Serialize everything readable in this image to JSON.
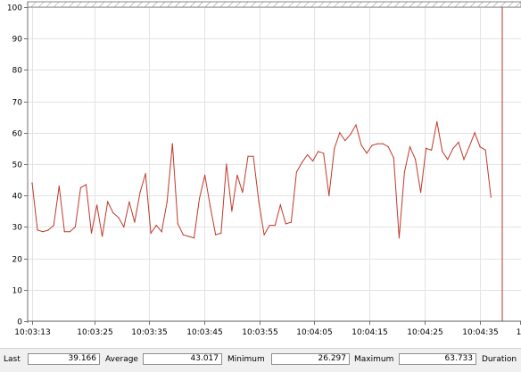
{
  "chart_data": {
    "type": "line",
    "yticks": [
      "0",
      "10",
      "20",
      "30",
      "40",
      "50",
      "60",
      "70",
      "80",
      "90",
      "100"
    ],
    "ylim": [
      0,
      100
    ],
    "xticks": [
      "10:03:13",
      "10:03:25",
      "10:03:35",
      "10:03:45",
      "10:03:55",
      "10:04:05",
      "10:04:15",
      "10:04:25",
      "10:04:35",
      "1"
    ],
    "x_start": "10:03:13",
    "x_end": "10:04:39",
    "grid": true,
    "line_color": "#c0392b",
    "series": [
      {
        "values": [
          44,
          29,
          28.5,
          29,
          30.5,
          43,
          28.5,
          28.5,
          30,
          42.5,
          43.5,
          28,
          37,
          27,
          38,
          34.5,
          33,
          30,
          38,
          31.5,
          41,
          47,
          28,
          30.5,
          28.5,
          38,
          56.5,
          31,
          27.5,
          27,
          26.5,
          39,
          46.5,
          36.5,
          27.5,
          28,
          50,
          35,
          46.5,
          41,
          52.5,
          52.5,
          38,
          27.5,
          30.5,
          30.5,
          37,
          31,
          31.5,
          47.5,
          50.5,
          53,
          51,
          54,
          53.5,
          40,
          55,
          60,
          57.5,
          59.5,
          62.5,
          56,
          53.5,
          56,
          56.5,
          56.5,
          55.5,
          52,
          26.5,
          47.5,
          55.5,
          51.5,
          41,
          55,
          54.5,
          63.5,
          54,
          51.5,
          55,
          57,
          51.5,
          55.5,
          60,
          55.5,
          54.5,
          39.5
        ]
      }
    ]
  },
  "statusbar": {
    "last_label": "Last",
    "last_value": "39.166",
    "average_label": "Average",
    "average_value": "43.017",
    "minimum_label": "Minimum",
    "minimum_value": "26.297",
    "maximum_label": "Maximum",
    "maximum_value": "63.733",
    "duration_label": "Duration"
  }
}
